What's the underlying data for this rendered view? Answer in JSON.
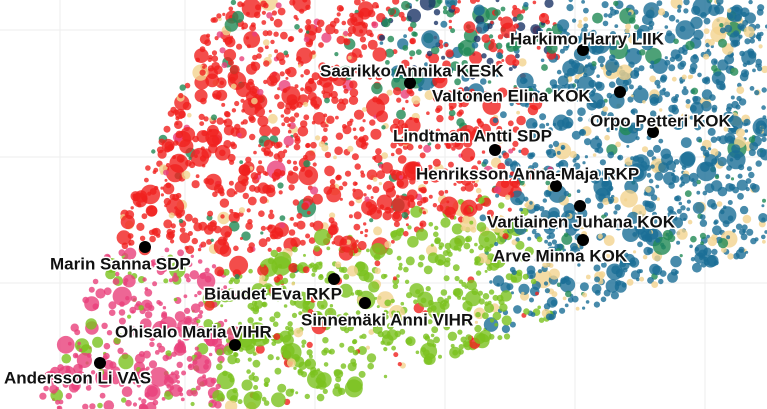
{
  "chart_data": {
    "type": "scatter",
    "point_labels": [
      "Harkimo Harry LIIK",
      "Saarikko Annika KESK",
      "Valtonen Elina KOK",
      "Orpo Petteri KOK",
      "Lindtman Antti SDP",
      "Henriksson Anna-Maja RKP",
      "Vartiainen Juhana KOK",
      "Arve Minna KOK",
      "Marin Sanna SDP",
      "Biaudet Eva RKP",
      "Sinnemäki Anni VIHR",
      "Ohisalo Maria VIHR",
      "Andersson Li VAS"
    ]
  }
}
